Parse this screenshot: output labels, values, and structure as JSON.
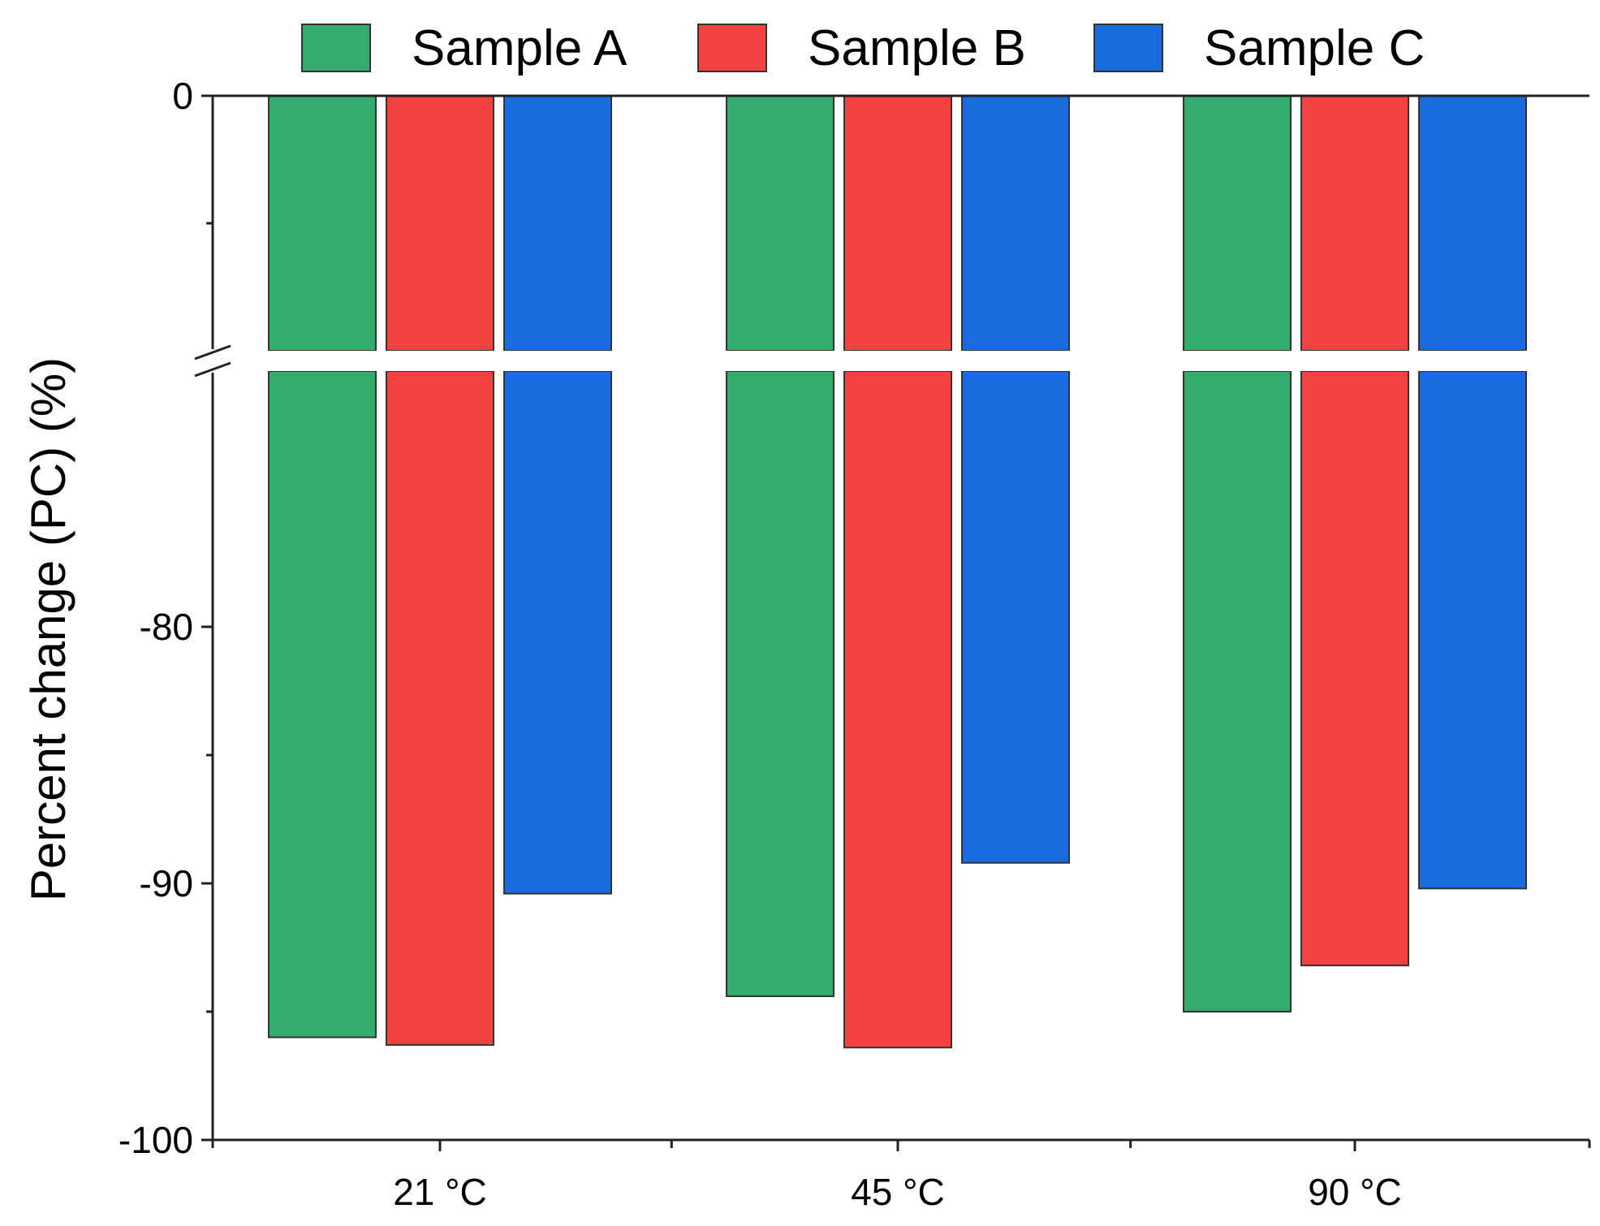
{
  "chart_data": {
    "type": "bar",
    "title": "",
    "xlabel": "",
    "ylabel": "Percent change (PC) (%)",
    "categories": [
      "21 °C",
      "45 °C",
      "90 °C"
    ],
    "series": [
      {
        "name": "Sample A",
        "color": "#33ad6b",
        "values": [
          -96.0,
          -94.4,
          -95.0
        ]
      },
      {
        "name": "Sample B",
        "color": "#f44242",
        "values": [
          -96.3,
          -96.4,
          -93.2
        ]
      },
      {
        "name": "Sample C",
        "color": "#1a6ae0",
        "values": [
          -90.4,
          -89.2,
          -90.2
        ]
      }
    ],
    "axis_break": {
      "from": -78,
      "to": 0
    },
    "ylim": [
      -100,
      0
    ],
    "y_ticks": [
      0,
      -80,
      -90,
      -100
    ],
    "y_tick_labels": [
      "0",
      "-80",
      "-90",
      "-100"
    ],
    "grid": false,
    "legend_position": "top"
  }
}
